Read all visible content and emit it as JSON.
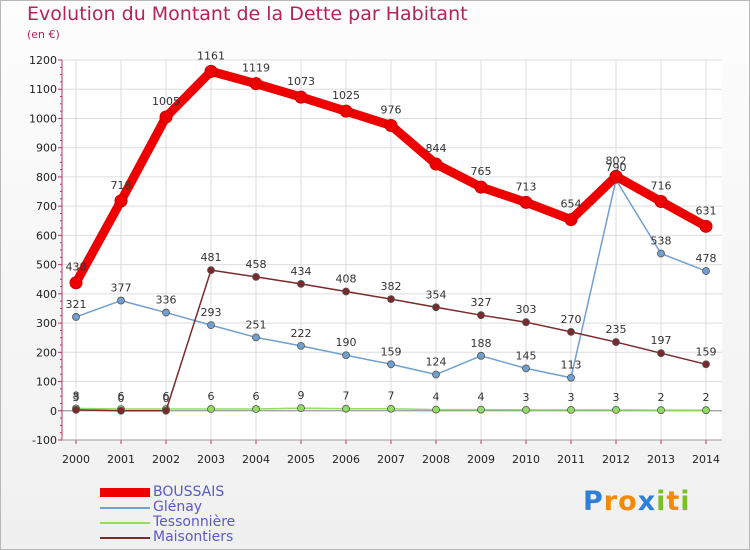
{
  "header": {
    "title": "Evolution du Montant de la Dette par Habitant",
    "unit": "(en €)"
  },
  "brand": {
    "text": "Proxiti",
    "letters": [
      {
        "ch": "P",
        "color": "#2f7fd6"
      },
      {
        "ch": "r",
        "color": "#f28b00"
      },
      {
        "ch": "o",
        "color": "#f28b00"
      },
      {
        "ch": "x",
        "color": "#2f7fd6"
      },
      {
        "ch": "i",
        "color": "#7cbf22"
      },
      {
        "ch": "t",
        "color": "#f28b00"
      },
      {
        "ch": "i",
        "color": "#7cbf22"
      }
    ]
  },
  "chart_data": {
    "type": "line",
    "title": "Evolution du Montant de la Dette par Habitant",
    "ylabel": "(en €)",
    "xlabel": "",
    "x": [
      "2000",
      "2001",
      "2002",
      "2003",
      "2004",
      "2005",
      "2006",
      "2007",
      "2008",
      "2009",
      "2010",
      "2011",
      "2012",
      "2013",
      "2014"
    ],
    "ylim": [
      -100,
      1200
    ],
    "yticks": [
      -100,
      0,
      100,
      200,
      300,
      400,
      500,
      600,
      700,
      800,
      900,
      1000,
      1100,
      1200
    ],
    "grid": true,
    "legend": "bottom-left",
    "series": [
      {
        "name": "BOUSSAIS",
        "color": "#ee0000",
        "values": [
          438,
          718,
          1005,
          1161,
          1119,
          1073,
          1025,
          976,
          844,
          765,
          713,
          654,
          802,
          716,
          631
        ]
      },
      {
        "name": "Glénay",
        "color": "#6fa0d0",
        "values": [
          321,
          377,
          336,
          293,
          251,
          222,
          190,
          159,
          124,
          188,
          145,
          113,
          790,
          538,
          478
        ]
      },
      {
        "name": "Tessonnière",
        "color": "#90dd60",
        "values": [
          8,
          6,
          6,
          6,
          6,
          9,
          7,
          7,
          4,
          4,
          3,
          3,
          3,
          2,
          2
        ]
      },
      {
        "name": "Maisontiers",
        "color": "#7a2a2a",
        "values": [
          3,
          0,
          0,
          481,
          458,
          434,
          408,
          382,
          354,
          327,
          303,
          270,
          235,
          197,
          159
        ]
      }
    ]
  }
}
